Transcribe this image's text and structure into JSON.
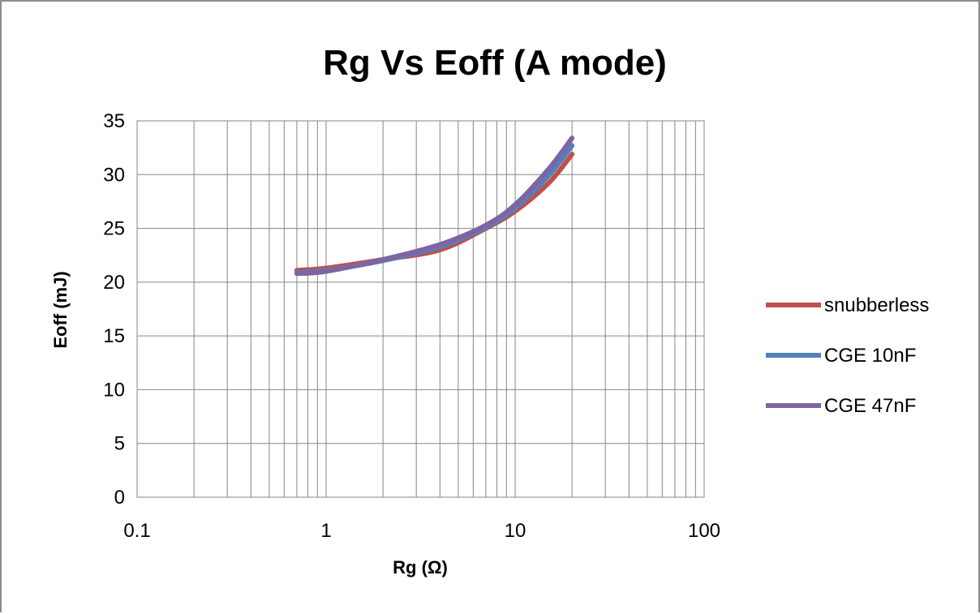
{
  "chart_data": {
    "type": "line",
    "title": "Rg Vs Eoff (A mode)",
    "xlabel": "Rg (Ω)",
    "ylabel": "Eoff (mJ)",
    "x_scale": "log",
    "xlim": [
      0.1,
      100
    ],
    "ylim": [
      0,
      35
    ],
    "x_ticks": [
      0.1,
      1,
      10,
      100
    ],
    "x_tick_labels": [
      "0.1",
      "1",
      "10",
      "100"
    ],
    "y_ticks": [
      0,
      5,
      10,
      15,
      20,
      25,
      30,
      35
    ],
    "y_tick_labels": [
      "0",
      "5",
      "10",
      "15",
      "20",
      "25",
      "30",
      "35"
    ],
    "grid": true,
    "legend_position": "right",
    "series": [
      {
        "name": "snubberless",
        "color": "#C0504D",
        "x": [
          0.7,
          1,
          2,
          4,
          7,
          10,
          15,
          20
        ],
        "y": [
          21.1,
          21.3,
          22.1,
          23.0,
          25.0,
          26.6,
          29.2,
          31.9
        ]
      },
      {
        "name": "CGE 10nF",
        "color": "#4F81BD",
        "x": [
          0.7,
          1,
          2,
          4,
          7,
          10,
          15,
          20
        ],
        "y": [
          20.9,
          21.1,
          22.0,
          23.3,
          25.1,
          26.9,
          29.9,
          32.7
        ]
      },
      {
        "name": "CGE 47nF",
        "color": "#8064A2",
        "x": [
          0.7,
          1,
          2,
          4,
          7,
          10,
          15,
          20
        ],
        "y": [
          20.8,
          21.0,
          22.1,
          23.5,
          25.3,
          27.2,
          30.5,
          33.4
        ]
      }
    ]
  }
}
